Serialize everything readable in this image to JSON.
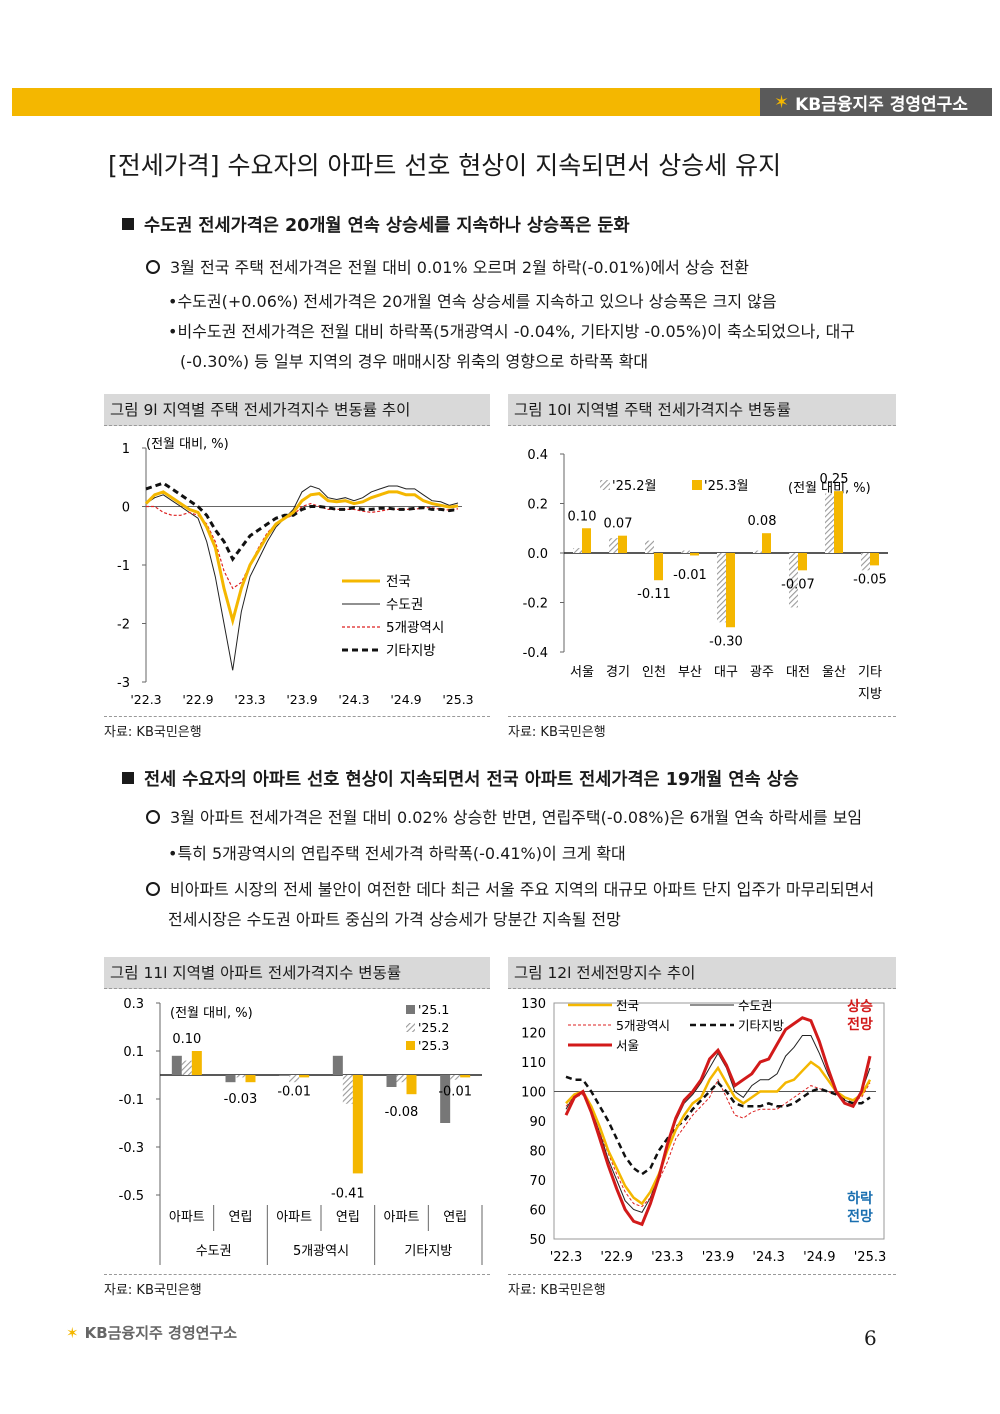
{
  "header": {
    "brand": "KB금융지주 경영연구소"
  },
  "title": "[전세가격] 수요자의 아파트 선호 현상이 지속되면서 상승세 유지",
  "section1": {
    "heading": "수도권 전세가격은 20개월 연속 상승세를 지속하나 상승폭은 둔화",
    "bullet": "3월 전국 주택 전세가격은 전월 대비 0.01% 오르며 2월 하락(-0.01%)에서 상승 전환",
    "sub1": "•수도권(+0.06%) 전세가격은 20개월 연속 상승세를 지속하고 있으나 상승폭은 크지 않음",
    "sub2a": "•비수도권 전세가격은 전월 대비 하락폭(5개광역시 -0.04%, 기타지방 -0.05%)이 축소되었으나, 대구",
    "sub2b": "(-0.30%) 등 일부 지역의 경우 매매시장 위축의 영향으로 하락폭 확대"
  },
  "fig9": {
    "title": "그림 9l 지역별 주택 전세가격지수 변동률 추이",
    "source": "자료: KB국민은행",
    "unit": "(전월 대비, %)",
    "y_ticks": [
      "1",
      "0",
      "-1",
      "-2",
      "-3"
    ],
    "x_ticks": [
      "'22.3",
      "'22.9",
      "'23.3",
      "'23.9",
      "'24.3",
      "'24.9",
      "'25.3"
    ],
    "legend": [
      "전국",
      "수도권",
      "5개광역시",
      "기타지방"
    ]
  },
  "fig10": {
    "title": "그림 10l 지역별 주택 전세가격지수 변동률",
    "source": "자료: KB국민은행",
    "unit": "(전월 대비, %)",
    "legend": [
      "'25.2월",
      "'25.3월"
    ],
    "y_ticks": [
      "0.4",
      "0.2",
      "0.0",
      "-0.2",
      "-0.4"
    ],
    "labels": [
      "0.10",
      "0.07",
      "-0.11",
      "-0.01",
      "-0.30",
      "0.08",
      "-0.07",
      "0.25",
      "-0.05"
    ],
    "categories": [
      "서울",
      "경기",
      "인천",
      "부산",
      "대구",
      "광주",
      "대전",
      "울산",
      "기타"
    ],
    "category_extra": "지방"
  },
  "section2": {
    "heading": "전세 수요자의 아파트 선호 현상이 지속되면서 전국 아파트 전세가격은 19개월 연속 상승",
    "bullet1": "3월 아파트 전세가격은 전월 대비 0.02% 상승한 반면, 연립주택(-0.08%)은 6개월 연속 하락세를 보임",
    "sub1": "•특히 5개광역시의 연립주택 전세가격 하락폭(-0.41%)이 크게 확대",
    "bullet2a": "비아파트 시장의 전세 불안이 여전한 데다 최근 서울 주요 지역의 대규모 아파트 단지 입주가 마무리되면서",
    "bullet2b": "전세시장은 수도권 아파트 중심의 가격 상승세가 당분간 지속될 전망"
  },
  "fig11": {
    "title": "그림 11l 지역별 아파트 전세가격지수 변동률",
    "source": "자료: KB국민은행",
    "unit": "(전월 대비, %)",
    "legend": [
      "'25.1",
      "'25.2",
      "'25.3"
    ],
    "y_ticks": [
      "0.3",
      "0.1",
      "-0.1",
      "-0.3",
      "-0.5"
    ],
    "labels": [
      "0.10",
      "-0.03",
      "-0.01",
      "-0.41",
      "-0.08",
      "-0.01"
    ],
    "sub_categories": [
      "아파트",
      "연립",
      "아파트",
      "연립",
      "아파트",
      "연립"
    ],
    "groups": [
      "수도권",
      "5개광역시",
      "기타지방"
    ]
  },
  "fig12": {
    "title": "그림 12l 전세전망지수 추이",
    "source": "자료: KB국민은행",
    "y_ticks": [
      "130",
      "120",
      "110",
      "100",
      "90",
      "80",
      "70",
      "60",
      "50"
    ],
    "x_ticks": [
      "'22.3",
      "'22.9",
      "'23.3",
      "'23.9",
      "'24.3",
      "'24.9",
      "'25.3"
    ],
    "legend": [
      "전국",
      "수도권",
      "5개광역시",
      "기타지방",
      "서울"
    ],
    "up_label": [
      "상승",
      "전망"
    ],
    "down_label": [
      "하락",
      "전망"
    ]
  },
  "chart_data": [
    {
      "type": "line",
      "title": "",
      "ylabel": "(전월 대비, %)",
      "ylim": [
        -3,
        1
      ],
      "x": [
        "'22.3",
        "'22.4",
        "'22.5",
        "'22.6",
        "'22.7",
        "'22.8",
        "'22.9",
        "'22.10",
        "'22.11",
        "'22.12",
        "'23.1",
        "'23.2",
        "'23.3",
        "'23.4",
        "'23.5",
        "'23.6",
        "'23.7",
        "'23.8",
        "'23.9",
        "'23.10",
        "'23.11",
        "'23.12",
        "'24.1",
        "'24.2",
        "'24.3",
        "'24.4",
        "'24.5",
        "'24.6",
        "'24.7",
        "'24.8",
        "'24.9",
        "'24.10",
        "'24.11",
        "'24.12",
        "'25.1",
        "'25.2",
        "'25.3"
      ],
      "series": [
        {
          "name": "전국",
          "values": [
            0.05,
            0.2,
            0.25,
            0.15,
            0.05,
            -0.05,
            -0.1,
            -0.35,
            -0.7,
            -1.4,
            -1.95,
            -1.4,
            -1.0,
            -0.75,
            -0.5,
            -0.3,
            -0.2,
            -0.1,
            0.1,
            0.2,
            0.22,
            0.1,
            0.08,
            0.1,
            0.05,
            0.08,
            0.15,
            0.2,
            0.25,
            0.25,
            0.2,
            0.2,
            0.1,
            0.05,
            0.02,
            -0.01,
            0.01
          ]
        },
        {
          "name": "수도권",
          "values": [
            0.05,
            0.15,
            0.2,
            0.1,
            0.0,
            -0.1,
            -0.2,
            -0.6,
            -1.2,
            -2.0,
            -2.8,
            -1.8,
            -1.2,
            -0.9,
            -0.6,
            -0.35,
            -0.2,
            -0.05,
            0.25,
            0.35,
            0.3,
            0.15,
            0.12,
            0.15,
            0.1,
            0.15,
            0.25,
            0.3,
            0.35,
            0.35,
            0.3,
            0.3,
            0.2,
            0.1,
            0.08,
            0.02,
            0.06
          ]
        },
        {
          "name": "5개광역시",
          "values": [
            0.0,
            0.0,
            -0.1,
            -0.15,
            -0.15,
            -0.1,
            -0.15,
            -0.3,
            -0.6,
            -1.1,
            -1.4,
            -1.3,
            -1.0,
            -0.7,
            -0.45,
            -0.3,
            -0.2,
            -0.15,
            0.0,
            0.05,
            0.0,
            -0.05,
            -0.05,
            -0.05,
            -0.05,
            -0.08,
            -0.1,
            -0.08,
            -0.05,
            -0.05,
            -0.05,
            -0.05,
            -0.02,
            -0.02,
            -0.05,
            -0.06,
            -0.04
          ]
        },
        {
          "name": "기타지방",
          "values": [
            0.3,
            0.35,
            0.4,
            0.3,
            0.2,
            0.1,
            0.0,
            -0.15,
            -0.4,
            -0.6,
            -0.9,
            -0.7,
            -0.5,
            -0.4,
            -0.3,
            -0.2,
            -0.15,
            -0.15,
            -0.05,
            0.0,
            0.0,
            -0.02,
            -0.05,
            -0.05,
            -0.02,
            -0.05,
            -0.05,
            -0.03,
            -0.03,
            -0.05,
            -0.05,
            -0.03,
            -0.02,
            -0.05,
            -0.05,
            -0.07,
            -0.05
          ]
        }
      ]
    },
    {
      "type": "bar",
      "title": "",
      "ylabel": "(전월 대비, %)",
      "ylim": [
        -0.4,
        0.4
      ],
      "categories": [
        "서울",
        "경기",
        "인천",
        "부산",
        "대구",
        "광주",
        "대전",
        "울산",
        "기타지방"
      ],
      "series": [
        {
          "name": "'25.2월",
          "values": [
            0.02,
            0.06,
            0.05,
            0.01,
            -0.28,
            0.01,
            -0.22,
            0.24,
            -0.07
          ]
        },
        {
          "name": "'25.3월",
          "values": [
            0.1,
            0.07,
            -0.11,
            -0.01,
            -0.3,
            0.08,
            -0.07,
            0.25,
            -0.05
          ]
        }
      ]
    },
    {
      "type": "bar",
      "title": "",
      "ylabel": "(전월 대비, %)",
      "ylim": [
        -0.5,
        0.3
      ],
      "categories": [
        "수도권 아파트",
        "수도권 연립",
        "5개광역시 아파트",
        "5개광역시 연립",
        "기타지방 아파트",
        "기타지방 연립"
      ],
      "series": [
        {
          "name": "'25.1",
          "values": [
            0.08,
            -0.03,
            0.0,
            0.08,
            -0.05,
            -0.2
          ]
        },
        {
          "name": "'25.2",
          "values": [
            0.06,
            -0.01,
            -0.03,
            -0.12,
            -0.03,
            -0.02
          ]
        },
        {
          "name": "'25.3",
          "values": [
            0.1,
            -0.03,
            -0.01,
            -0.41,
            -0.08,
            -0.01
          ]
        }
      ]
    },
    {
      "type": "line",
      "title": "",
      "ylim": [
        50,
        130
      ],
      "x": [
        "'22.3",
        "'22.4",
        "'22.5",
        "'22.6",
        "'22.7",
        "'22.8",
        "'22.9",
        "'22.10",
        "'22.11",
        "'22.12",
        "'23.1",
        "'23.2",
        "'23.3",
        "'23.4",
        "'23.5",
        "'23.6",
        "'23.7",
        "'23.8",
        "'23.9",
        "'23.10",
        "'23.11",
        "'23.12",
        "'24.1",
        "'24.2",
        "'24.3",
        "'24.4",
        "'24.5",
        "'24.6",
        "'24.7",
        "'24.8",
        "'24.9",
        "'24.10",
        "'24.11",
        "'24.12",
        "'25.1",
        "'25.2",
        "'25.3"
      ],
      "series": [
        {
          "name": "전국",
          "values": [
            96,
            99,
            100,
            95,
            88,
            80,
            74,
            68,
            64,
            62,
            66,
            72,
            80,
            87,
            92,
            96,
            98,
            104,
            108,
            103,
            98,
            96,
            98,
            100,
            100,
            100,
            103,
            104,
            107,
            110,
            108,
            104,
            100,
            98,
            97,
            99,
            104
          ]
        },
        {
          "name": "수도권",
          "values": [
            94,
            99,
            100,
            94,
            86,
            77,
            70,
            63,
            60,
            59,
            64,
            72,
            82,
            90,
            96,
            99,
            103,
            108,
            113,
            108,
            100,
            98,
            102,
            104,
            104,
            106,
            112,
            115,
            119,
            119,
            113,
            106,
            100,
            97,
            96,
            100,
            108
          ]
        },
        {
          "name": "5개광역시",
          "values": [
            95,
            98,
            99,
            93,
            86,
            79,
            72,
            66,
            62,
            61,
            64,
            70,
            76,
            84,
            88,
            92,
            95,
            98,
            104,
            98,
            92,
            91,
            93,
            94,
            94,
            94,
            96,
            98,
            100,
            102,
            101,
            100,
            99,
            98,
            97,
            98,
            103
          ]
        },
        {
          "name": "기타지방",
          "values": [
            105,
            104,
            104,
            100,
            95,
            90,
            84,
            78,
            74,
            72,
            74,
            80,
            84,
            88,
            90,
            94,
            97,
            100,
            103,
            100,
            96,
            95,
            95,
            95,
            96,
            95,
            95,
            96,
            98,
            100,
            101,
            100,
            99,
            97,
            96,
            96,
            98
          ]
        },
        {
          "name": "서울",
          "values": [
            92,
            98,
            100,
            93,
            84,
            75,
            67,
            60,
            56,
            55,
            62,
            71,
            82,
            91,
            97,
            100,
            104,
            111,
            114,
            109,
            102,
            104,
            106,
            110,
            111,
            116,
            121,
            123,
            125,
            124,
            117,
            108,
            100,
            96,
            95,
            100,
            112
          ]
        }
      ]
    }
  ]
}
